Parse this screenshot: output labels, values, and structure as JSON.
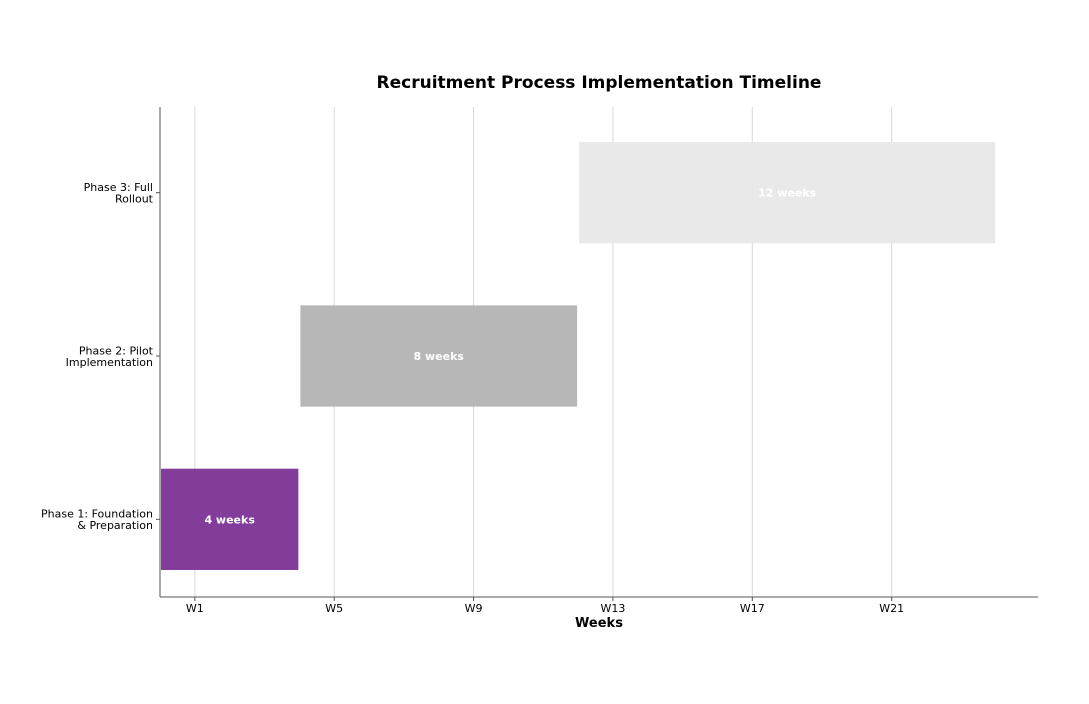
{
  "chart_data": {
    "type": "gantt",
    "title": "Recruitment Process Implementation Timeline",
    "xlabel": "Weeks",
    "ylabel": "",
    "x_ticks": [
      "W1",
      "W5",
      "W9",
      "W13",
      "W17",
      "W21"
    ],
    "x_tick_values": [
      1,
      5,
      9,
      13,
      17,
      21
    ],
    "xlim": [
      0,
      25.2
    ],
    "grid": "vertical",
    "tasks": [
      {
        "name": "Phase 1: Foundation & Preparation",
        "label_lines": [
          "Phase 1: Foundation",
          "& Preparation"
        ],
        "start": 0,
        "duration": 4,
        "bar_label": "4 weeks",
        "color": "#7b3294"
      },
      {
        "name": "Phase 2: Pilot Implementation",
        "label_lines": [
          "Phase 2: Pilot",
          "Implementation"
        ],
        "start": 4,
        "duration": 8,
        "bar_label": "8 weeks",
        "color": "#b3b3b3"
      },
      {
        "name": "Phase 3: Full Rollout",
        "label_lines": [
          "Phase 3: Full",
          "Rollout"
        ],
        "start": 12,
        "duration": 12,
        "bar_label": "12 weeks",
        "color": "#e8e8e8"
      }
    ]
  }
}
